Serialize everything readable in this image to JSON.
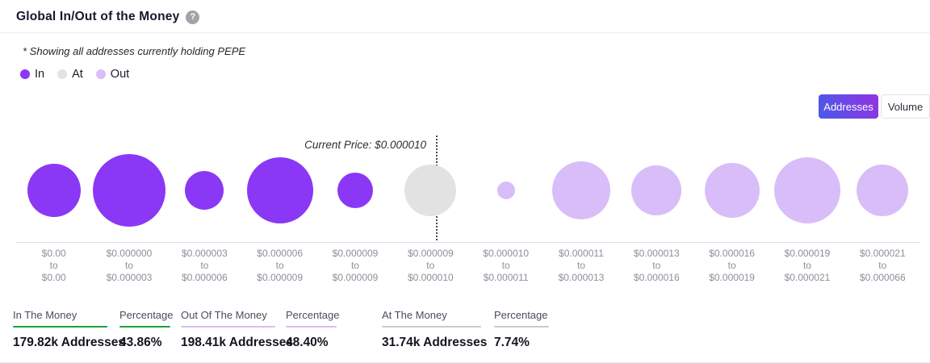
{
  "header": {
    "title": "Global In/Out of the Money",
    "help_glyph": "?"
  },
  "subtitle": "* Showing all addresses currently holding PEPE",
  "legend": [
    {
      "label": "In",
      "color": "#8A38F5"
    },
    {
      "label": "At",
      "color": "#E2E2E2"
    },
    {
      "label": "Out",
      "color": "#D9BDF8"
    }
  ],
  "toggle": {
    "addresses_label": "Addresses",
    "volume_label": "Volume",
    "active": "Addresses"
  },
  "chart_data": {
    "type": "bubble",
    "title": "Global In/Out of the Money",
    "current_price_annotation": "Current Price: $0.000010",
    "current_price": "$0.000010",
    "range_separator": "to",
    "legend_position": "top-left",
    "colors": {
      "in": "#8A38F5",
      "at": "#E2E2E2",
      "out": "#D9BDF8"
    },
    "buckets": [
      {
        "from": "$0.00",
        "to": "$0.00",
        "status": "in",
        "radius_px": 33
      },
      {
        "from": "$0.000000",
        "to": "$0.000003",
        "status": "in",
        "radius_px": 45
      },
      {
        "from": "$0.000003",
        "to": "$0.000006",
        "status": "in",
        "radius_px": 24
      },
      {
        "from": "$0.000006",
        "to": "$0.000009",
        "status": "in",
        "radius_px": 41
      },
      {
        "from": "$0.000009",
        "to": "$0.000009",
        "status": "in",
        "radius_px": 22
      },
      {
        "from": "$0.000009",
        "to": "$0.000010",
        "status": "at",
        "radius_px": 32
      },
      {
        "from": "$0.000010",
        "to": "$0.000011",
        "status": "out",
        "radius_px": 11
      },
      {
        "from": "$0.000011",
        "to": "$0.000013",
        "status": "out",
        "radius_px": 36
      },
      {
        "from": "$0.000013",
        "to": "$0.000016",
        "status": "out",
        "radius_px": 31
      },
      {
        "from": "$0.000016",
        "to": "$0.000019",
        "status": "out",
        "radius_px": 34
      },
      {
        "from": "$0.000019",
        "to": "$0.000021",
        "status": "out",
        "radius_px": 41
      },
      {
        "from": "$0.000021",
        "to": "$0.000066",
        "status": "out",
        "radius_px": 32
      }
    ]
  },
  "summary": [
    {
      "label": "In The Money",
      "value": "179.82k Addresses",
      "accent": "#1FA03C"
    },
    {
      "label": "Percentage",
      "value": "43.86%",
      "accent": "#1FA03C"
    },
    {
      "label": "Out Of The Money",
      "value": "198.41k Addresses",
      "accent": "#D9BDF8"
    },
    {
      "label": "Percentage",
      "value": "48.40%",
      "accent": "#D9BDF8"
    },
    {
      "label": "At The Money",
      "value": "31.74k Addresses",
      "accent": "#CBCBCB"
    },
    {
      "label": "Percentage",
      "value": "7.74%",
      "accent": "#CBCBCB"
    }
  ]
}
